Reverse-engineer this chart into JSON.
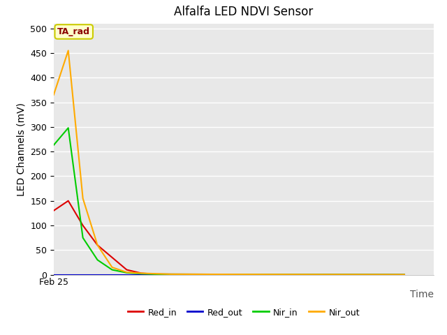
{
  "title": "Alfalfa LED NDVI Sensor",
  "xlabel": "Time",
  "ylabel": "LED Channels (mV)",
  "ylim": [
    0,
    510
  ],
  "xlim": [
    0,
    13
  ],
  "background_color": "#e8e8e8",
  "fig_background": "#ffffff",
  "annotation_text": "TA_rad",
  "annotation_color": "#8b0000",
  "annotation_bg": "#ffffcc",
  "annotation_edge": "#cccc00",
  "x_tick_label": "Feb 25",
  "x_tick_pos": 0,
  "series": {
    "Red_in": {
      "color": "#dd0000",
      "x": [
        0,
        0.5,
        1,
        1.5,
        2,
        2.5,
        3,
        3.5,
        12
      ],
      "y": [
        130,
        150,
        100,
        60,
        35,
        10,
        3,
        1,
        0
      ]
    },
    "Red_out": {
      "color": "#0000cc",
      "x": [
        0,
        12
      ],
      "y": [
        0,
        0
      ]
    },
    "Nir_in": {
      "color": "#00cc00",
      "x": [
        0,
        0.5,
        1,
        1.5,
        2,
        2.5,
        3,
        3.5,
        12
      ],
      "y": [
        263,
        298,
        75,
        30,
        10,
        4,
        2,
        1,
        0
      ]
    },
    "Nir_out": {
      "color": "#ffaa00",
      "x": [
        0,
        0.5,
        1,
        1.5,
        2,
        2.5,
        3,
        3.5,
        4,
        12
      ],
      "y": [
        365,
        455,
        155,
        60,
        15,
        5,
        3,
        2,
        1,
        0
      ]
    }
  },
  "legend_order": [
    "Red_in",
    "Red_out",
    "Nir_in",
    "Nir_out"
  ],
  "grid_color": "#ffffff",
  "grid_linewidth": 1.0,
  "title_fontsize": 12,
  "axis_label_fontsize": 10,
  "tick_fontsize": 9,
  "line_width": 1.5
}
